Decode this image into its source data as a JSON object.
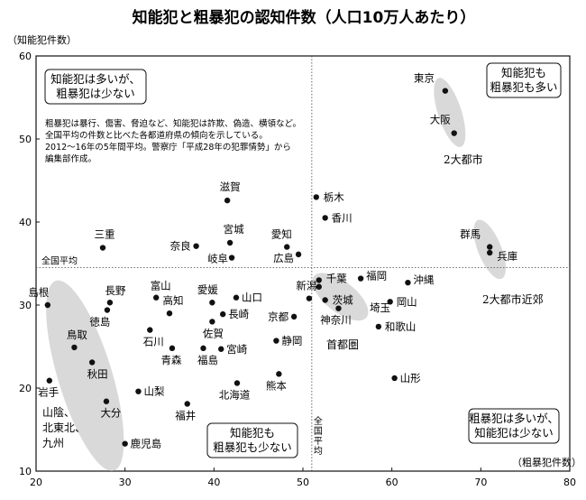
{
  "chart_data": {
    "type": "scatter",
    "title": "知能犯と粗暴犯の認知件数（人口10万人あたり）",
    "xlabel": "（粗暴犯件数）",
    "ylabel": "（知能犯件数）",
    "xlim": [
      20,
      80
    ],
    "ylim": [
      10,
      60
    ],
    "xticks": [
      "20",
      "30",
      "40",
      "50",
      "60",
      "70",
      "80"
    ],
    "yticks": [
      "10",
      "20",
      "30",
      "40",
      "50",
      "60"
    ],
    "avg_x": 51,
    "avg_y": 34.5,
    "avg_x_label": "全国平均",
    "avg_y_label": "全国平均",
    "note": [
      "粗暴犯は暴行、傷害、脅迫など、知能犯は詐欺、偽造、横領など。",
      "全国平均の件数と比べた各都道府県の傾向を示している。",
      "2012～16年の5年間平均。警察庁「平成28年の犯罪情勢」から",
      "編集部作成。"
    ],
    "quadrants": [
      [
        "知能犯は多いが、",
        "粗暴犯は少ない"
      ],
      [
        "知能犯も",
        "粗暴犯も多い"
      ],
      [
        "知能犯も",
        "粗暴犯も少ない"
      ],
      [
        "粗暴犯は多いが、",
        "知能犯は少ない"
      ]
    ],
    "groups": [
      {
        "label": [
          "2大都市"
        ]
      },
      {
        "label": [
          "2大都市近郊"
        ]
      },
      {
        "label": [
          "首都圏"
        ]
      },
      {
        "label": [
          "山陰、",
          "北東北、",
          "九州"
        ]
      }
    ],
    "points": [
      {
        "name": "東京",
        "x": 66,
        "y": 55.8
      },
      {
        "name": "大阪",
        "x": 67,
        "y": 50.7
      },
      {
        "name": "栃木",
        "x": 51.5,
        "y": 43
      },
      {
        "name": "香川",
        "x": 52.5,
        "y": 40.5
      },
      {
        "name": "群馬",
        "x": 71,
        "y": 37
      },
      {
        "name": "兵庫",
        "x": 71,
        "y": 36.3
      },
      {
        "name": "滋賀",
        "x": 41.5,
        "y": 42.6
      },
      {
        "name": "宮城",
        "x": 41.8,
        "y": 37.5
      },
      {
        "name": "愛知",
        "x": 48.2,
        "y": 37
      },
      {
        "name": "奈良",
        "x": 38,
        "y": 37.1
      },
      {
        "name": "岐阜",
        "x": 42,
        "y": 35.7
      },
      {
        "name": "広島",
        "x": 49.5,
        "y": 36.1
      },
      {
        "name": "三重",
        "x": 27.5,
        "y": 36.9
      },
      {
        "name": "千葉",
        "x": 51.8,
        "y": 33
      },
      {
        "name": "福岡",
        "x": 56.5,
        "y": 33.2
      },
      {
        "name": "沖縄",
        "x": 61.8,
        "y": 32.7
      },
      {
        "name": "埼玉",
        "x": 51.8,
        "y": 32.2
      },
      {
        "name": "茨城",
        "x": 52.5,
        "y": 30.6
      },
      {
        "name": "新潟",
        "x": 50.7,
        "y": 30.8
      },
      {
        "name": "神奈川",
        "x": 54,
        "y": 29.6
      },
      {
        "name": "岡山",
        "x": 59.8,
        "y": 30.4
      },
      {
        "name": "和歌山",
        "x": 58.5,
        "y": 27.4
      },
      {
        "name": "山形",
        "x": 60.3,
        "y": 21.2
      },
      {
        "name": "島根",
        "x": 21.3,
        "y": 30
      },
      {
        "name": "長野",
        "x": 28.3,
        "y": 30.3
      },
      {
        "name": "徳島",
        "x": 28,
        "y": 29.4
      },
      {
        "name": "富山",
        "x": 33.5,
        "y": 30.9
      },
      {
        "name": "高知",
        "x": 35,
        "y": 29
      },
      {
        "name": "石川",
        "x": 32.8,
        "y": 27
      },
      {
        "name": "愛媛",
        "x": 39.8,
        "y": 30.3
      },
      {
        "name": "山口",
        "x": 42.5,
        "y": 30.9
      },
      {
        "name": "長崎",
        "x": 41,
        "y": 28.9
      },
      {
        "name": "京都",
        "x": 49,
        "y": 28.6
      },
      {
        "name": "佐賀",
        "x": 39.8,
        "y": 28
      },
      {
        "name": "宮崎",
        "x": 40.8,
        "y": 24.7
      },
      {
        "name": "静岡",
        "x": 47,
        "y": 25.7
      },
      {
        "name": "青森",
        "x": 35.3,
        "y": 24.8
      },
      {
        "name": "福島",
        "x": 38.8,
        "y": 24.8
      },
      {
        "name": "鳥取",
        "x": 24.3,
        "y": 24.9
      },
      {
        "name": "秋田",
        "x": 26.3,
        "y": 23.1
      },
      {
        "name": "熊本",
        "x": 47.3,
        "y": 21.7
      },
      {
        "name": "岩手",
        "x": 21.5,
        "y": 20.9
      },
      {
        "name": "山梨",
        "x": 31.5,
        "y": 19.6
      },
      {
        "name": "北海道",
        "x": 42.6,
        "y": 20.6
      },
      {
        "name": "大分",
        "x": 27.9,
        "y": 18.4
      },
      {
        "name": "福井",
        "x": 37,
        "y": 18.1
      },
      {
        "name": "鹿児島",
        "x": 30,
        "y": 13.3
      }
    ]
  }
}
